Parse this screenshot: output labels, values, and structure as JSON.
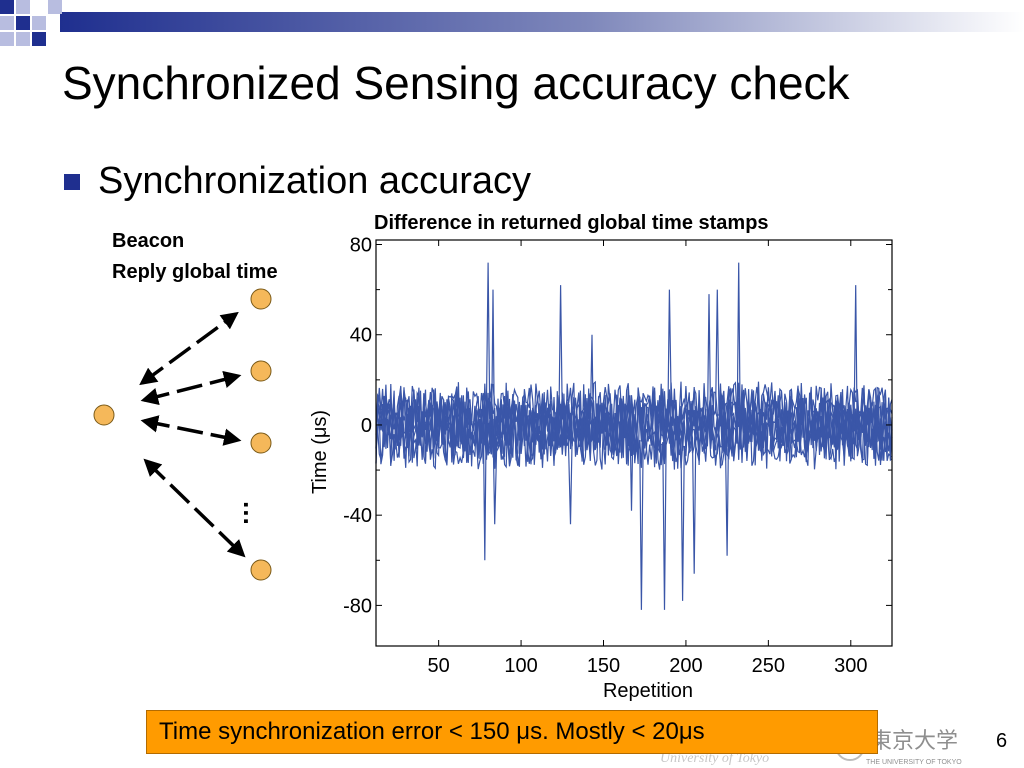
{
  "slide": {
    "title": "Synchronized Sensing accuracy check",
    "bullet": "Synchronization accuracy",
    "page_number": "6"
  },
  "diagram": {
    "label_line1": "Beacon",
    "label_line2": "Reply global time",
    "ellipsis": "…"
  },
  "note": {
    "text": "Time synchronization error < 150 μs. Mostly < 20μs"
  },
  "footer": {
    "logo_text": "東京大学",
    "logo_sub": "THE UNIVERSITY OF TOKYO",
    "logo_script": "University of Tokyo"
  },
  "colors": {
    "series": "#3a56a8",
    "title_bar": "#1f2f8f",
    "note_bg": "#ff9b00",
    "node_fill": "#f5b85a"
  },
  "chart_data": {
    "type": "line",
    "title": "Difference in returned global time stamps",
    "xlabel": "Repetition",
    "ylabel": "Time (μs)",
    "xlim": [
      12,
      325
    ],
    "ylim": [
      -98,
      82
    ],
    "xticks": [
      50,
      100,
      150,
      200,
      250,
      300
    ],
    "yticks": [
      80,
      40,
      0,
      -40,
      -80
    ],
    "grid": false,
    "series_count": 8,
    "noise_band": [
      -20,
      20
    ],
    "spikes": [
      {
        "x": 80,
        "y": 72
      },
      {
        "x": 83,
        "y": 60
      },
      {
        "x": 78,
        "y": -60
      },
      {
        "x": 84,
        "y": -44
      },
      {
        "x": 124,
        "y": 62
      },
      {
        "x": 130,
        "y": -44
      },
      {
        "x": 143,
        "y": 40
      },
      {
        "x": 167,
        "y": -38
      },
      {
        "x": 173,
        "y": -82
      },
      {
        "x": 187,
        "y": -82
      },
      {
        "x": 190,
        "y": 60
      },
      {
        "x": 198,
        "y": -78
      },
      {
        "x": 205,
        "y": -66
      },
      {
        "x": 214,
        "y": 58
      },
      {
        "x": 219,
        "y": 60
      },
      {
        "x": 225,
        "y": -58
      },
      {
        "x": 232,
        "y": 72
      },
      {
        "x": 303,
        "y": 62
      }
    ]
  }
}
